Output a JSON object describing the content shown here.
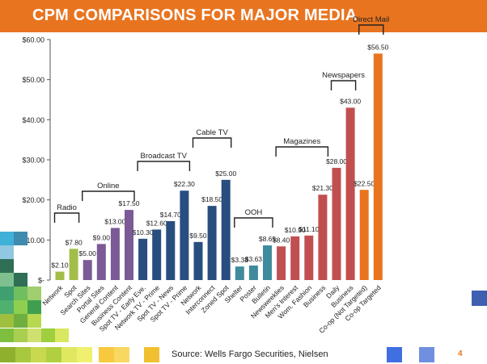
{
  "slide": {
    "title": "CPM COMPARISONS FOR MAJOR MEDIA",
    "source": "Source: Wells Fargo Securities, Nielsen",
    "page_number": "4"
  },
  "colors": {
    "header": "#e9741f",
    "radio": "#a3bd48",
    "online": "#7b5a96",
    "broadcast_tv": "#284e80",
    "cable_tv": "#284e80",
    "ooh": "#3f8b9d",
    "magazines": "#c14f4f",
    "newspapers": "#c14f4f",
    "direct_mail": "#e9741f"
  },
  "chart_data": {
    "type": "bar",
    "title": "CPM COMPARISONS FOR MAJOR MEDIA",
    "ylim": [
      0,
      60
    ],
    "y_ticks": [
      "$-",
      "$10.00",
      "$20.00",
      "$30.00",
      "$40.00",
      "$50.00",
      "$60.00"
    ],
    "grid": false,
    "categories": [
      "Network",
      "Spot",
      "Search Sites",
      "Portal Sites",
      "General Content",
      "Business Content",
      "Spot TV - Early Eve.",
      "Network TV - Prime",
      "Spot TV - News",
      "Spot TV - Prime",
      "Network",
      "Interconnect",
      "Zoned Spot",
      "Shelter",
      "Poster",
      "Bulletin",
      "Newsweeklies",
      "Men's Interest",
      "Wom. Fashion",
      "Business",
      "Daily",
      "Business",
      "Co-op (Not Targeted)",
      "Co-op Targeted"
    ],
    "values": [
      2.1,
      7.8,
      5.0,
      9.0,
      13.0,
      17.5,
      10.3,
      12.6,
      14.7,
      22.3,
      9.5,
      18.5,
      25.0,
      3.38,
      3.63,
      8.65,
      8.4,
      10.9,
      11.1,
      21.3,
      28.0,
      43.0,
      22.5,
      56.5
    ],
    "value_labels": [
      "$2.10",
      "$7.80",
      "$5.00",
      "$9.00",
      "$13.00",
      "$17.50",
      "$10.30",
      "$12.60",
      "$14.70",
      "$22.30",
      "$9.50",
      "$18.50",
      "$25.00",
      "$3.38",
      "$3.63",
      "$8.65",
      "$8.40",
      "$10.90",
      "$11.10",
      "$21.30",
      "$28.00",
      "$43.00",
      "$22.50",
      "$56.50"
    ],
    "colors": [
      "#a3bd48",
      "#a3bd48",
      "#7b5a96",
      "#7b5a96",
      "#7b5a96",
      "#7b5a96",
      "#284e80",
      "#284e80",
      "#284e80",
      "#284e80",
      "#284e80",
      "#284e80",
      "#284e80",
      "#3f8b9d",
      "#3f8b9d",
      "#3f8b9d",
      "#c14f4f",
      "#c14f4f",
      "#c14f4f",
      "#c14f4f",
      "#c14f4f",
      "#c14f4f",
      "#e9741f",
      "#e9741f"
    ],
    "groups": [
      {
        "name": "Radio",
        "start": 0,
        "end": 1
      },
      {
        "name": "Online",
        "start": 2,
        "end": 5
      },
      {
        "name": "Broadcast TV",
        "start": 6,
        "end": 9
      },
      {
        "name": "Cable TV",
        "start": 10,
        "end": 12
      },
      {
        "name": "OOH",
        "start": 13,
        "end": 15
      },
      {
        "name": "Magazines",
        "start": 16,
        "end": 19
      },
      {
        "name": "Newspapers",
        "start": 20,
        "end": 21
      },
      {
        "name": "Direct Mail",
        "start": 22,
        "end": 23
      }
    ]
  }
}
